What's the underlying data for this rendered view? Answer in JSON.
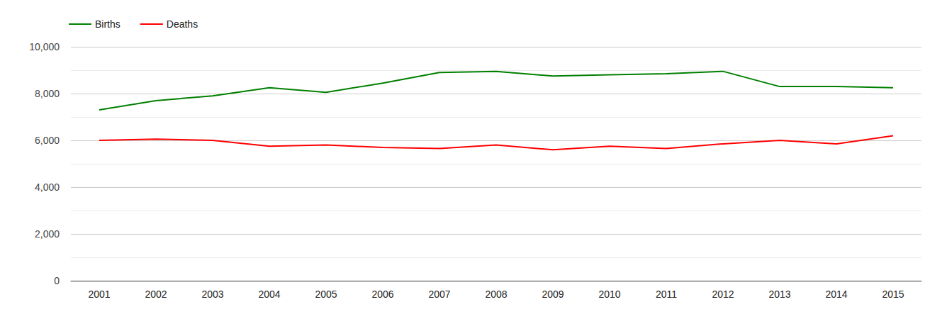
{
  "chart_data": {
    "type": "line",
    "categories": [
      "2001",
      "2002",
      "2003",
      "2004",
      "2005",
      "2006",
      "2007",
      "2008",
      "2009",
      "2010",
      "2011",
      "2012",
      "2013",
      "2014",
      "2015"
    ],
    "series": [
      {
        "name": "Births",
        "color": "#008000",
        "values": [
          7300,
          7700,
          7900,
          8250,
          8050,
          8450,
          8900,
          8950,
          8750,
          8800,
          8850,
          8950,
          8300,
          8300,
          8250
        ]
      },
      {
        "name": "Deaths",
        "color": "#ff0000",
        "values": [
          6000,
          6050,
          6000,
          5750,
          5800,
          5700,
          5650,
          5800,
          5600,
          5750,
          5650,
          5850,
          6000,
          5850,
          6200
        ]
      }
    ],
    "ylim": [
      0,
      10000
    ],
    "yticks": [
      0,
      {
        "value": 2000,
        "label": "2,000"
      },
      {
        "value": 4000,
        "label": "4,000"
      },
      {
        "value": 6000,
        "label": "6,000"
      },
      {
        "value": 8000,
        "label": "8,000"
      },
      {
        "value": 10000,
        "label": "10,000"
      }
    ],
    "grid": true,
    "legend": "top-left"
  }
}
